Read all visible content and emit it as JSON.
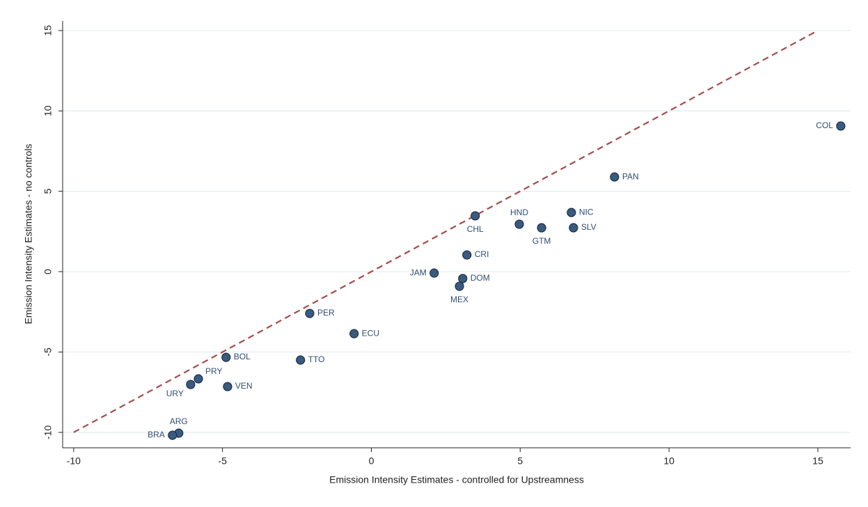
{
  "chart_data": {
    "type": "scatter",
    "x_label": "Emission Intensity Estimates - controlled for Upstreamness",
    "y_label": "Emission Intensity Estimates - no controls",
    "labels": [
      "COL",
      "PAN",
      "NIC",
      "SLV",
      "HND",
      "GTM",
      "CHL",
      "CRI",
      "JAM",
      "DOM",
      "MEX",
      "PER",
      "ECU",
      "TTO",
      "BOL",
      "VEN",
      "PRY",
      "URY",
      "ARG",
      "BRA"
    ],
    "x": [
      15.77,
      8.17,
      6.72,
      6.79,
      4.97,
      5.72,
      3.49,
      3.21,
      2.11,
      3.07,
      2.96,
      -2.07,
      -0.58,
      -2.38,
      -4.88,
      -4.83,
      -5.81,
      -6.07,
      -6.47,
      -6.68
    ],
    "y": [
      9.06,
      5.89,
      3.68,
      2.73,
      2.95,
      2.73,
      3.47,
      1.04,
      -0.09,
      -0.43,
      -0.91,
      -2.6,
      -3.86,
      -5.5,
      -5.33,
      -7.15,
      -6.67,
      -7.02,
      -10.05,
      -10.18
    ],
    "color": "#3a5a80",
    "xlim": [
      -10.37,
      16.1
    ],
    "ylim": [
      -10.96,
      15.6
    ],
    "xticks": [
      -10,
      -5,
      0,
      5,
      10,
      15
    ],
    "yticks": [
      -10,
      -5,
      0,
      5,
      10,
      15
    ],
    "grid": true,
    "reference_line": {
      "from": -10,
      "to": 15,
      "color": "#a84a4a",
      "dashed": true
    }
  }
}
